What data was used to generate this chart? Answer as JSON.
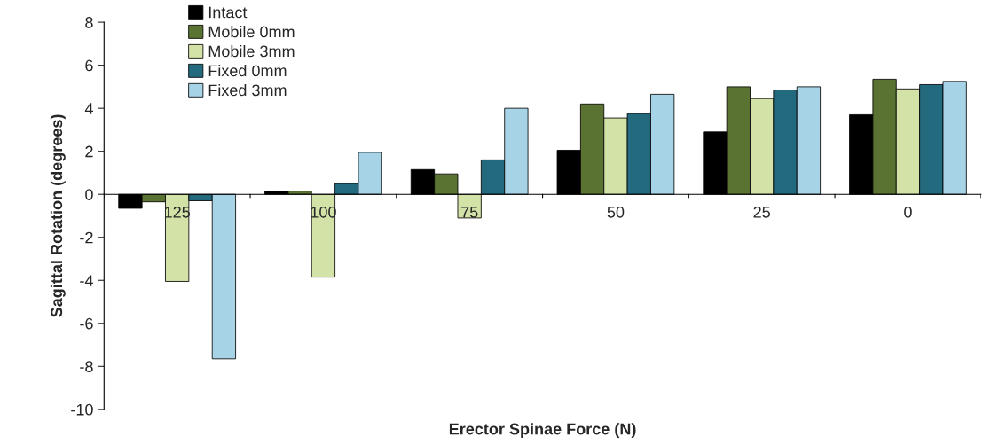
{
  "chart_data": {
    "type": "bar",
    "xlabel": "Erector Spinae Force (N)",
    "ylabel": "Sagittal Rotation (degrees)",
    "categories": [
      "125",
      "100",
      "75",
      "50",
      "25",
      "0"
    ],
    "series": [
      {
        "name": "Intact",
        "color": "#000000",
        "values": [
          -0.65,
          0.15,
          1.15,
          2.05,
          2.9,
          3.7
        ]
      },
      {
        "name": "Mobile 0mm",
        "color": "#5a7332",
        "values": [
          -0.35,
          0.15,
          0.95,
          4.2,
          5.0,
          5.35
        ]
      },
      {
        "name": "Mobile 3mm",
        "color": "#d3e3a8",
        "values": [
          -4.05,
          -3.85,
          -1.1,
          3.55,
          4.45,
          4.9
        ]
      },
      {
        "name": "Fixed 0mm",
        "color": "#246a7f",
        "values": [
          -0.3,
          0.5,
          1.6,
          3.75,
          4.85,
          5.1
        ]
      },
      {
        "name": "Fixed 3mm",
        "color": "#a7d3e6",
        "values": [
          -7.65,
          1.95,
          4.0,
          4.65,
          5.0,
          5.25
        ]
      }
    ],
    "ylim": [
      -10,
      8
    ],
    "yticks": [
      -10,
      -8,
      -6,
      -4,
      -2,
      0,
      2,
      4,
      6,
      8
    ],
    "grid": false,
    "legend": "top left"
  }
}
